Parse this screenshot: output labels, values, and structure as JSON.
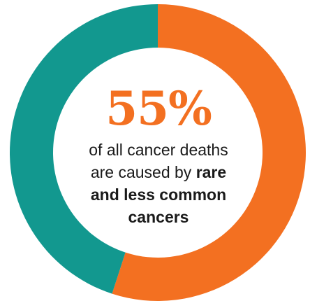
{
  "chart_data": {
    "type": "pie",
    "donut": true,
    "slices": [
      {
        "value": 55,
        "color": "#f37021"
      },
      {
        "value": 45,
        "color": "#12988f"
      }
    ],
    "start_angle_deg": 0,
    "direction": "clockwise"
  },
  "center": {
    "percentage": "55%",
    "line1": "of all cancer deaths",
    "line2_plain": "are caused by ",
    "line2_bold": "rare",
    "line3_bold": "and less common",
    "line4_bold": "cancers"
  },
  "colors": {
    "rare": "#f37021",
    "common": "#12988f",
    "percentage_text": "#f37021"
  }
}
